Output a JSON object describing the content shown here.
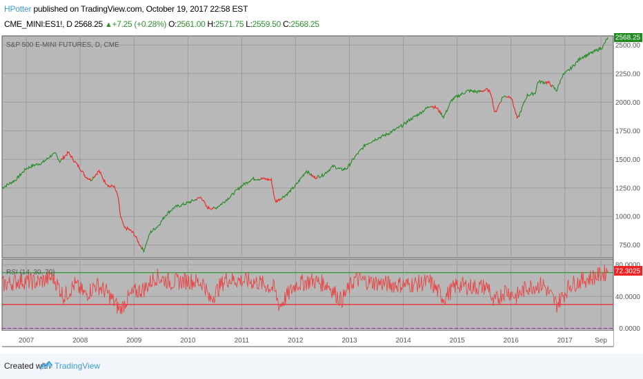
{
  "header": {
    "author": "HPotter",
    "published_text": "published on TradingView.com, October 19, 2017 22:58 EST",
    "symbol": "CME_MINI:ES1!, D",
    "last_price": "2568.25",
    "change": "+7.25 (+0.28%)",
    "open_label": "O:",
    "open": "2561.00",
    "high_label": "H:",
    "high": "2571.75",
    "low_label": "L:",
    "low": "2559.50",
    "close_label": "C:",
    "close": "2568.25"
  },
  "footer": {
    "created_with": "Created with",
    "brand": "TradingView"
  },
  "colors": {
    "pane_bg": "#b8b8b8",
    "up": "#1f8a1f",
    "down": "#ee2222",
    "rsi_line": "#e84444",
    "overbought_line": "#2f9a2f",
    "oversold_line": "#ee2222",
    "zero_line": "#9a30b0",
    "price_badge": "#1f8a1f",
    "rsi_badge": "#ee2222"
  },
  "chart_data": [
    {
      "type": "line",
      "title": "S&P 500 E-MINI FUTURES, D, CME",
      "y_ticks": [
        750,
        1000,
        1250,
        1500,
        1750,
        2000,
        2250,
        2500
      ],
      "ylim": [
        640,
        2580
      ],
      "last_value_label": "2568.25",
      "x_ticks": [
        "2007",
        "2008",
        "2009",
        "2010",
        "2011",
        "2012",
        "2013",
        "2014",
        "2015",
        "2016",
        "2017",
        "Sep"
      ],
      "x_tick_dates": [
        2007.0,
        2008.0,
        2009.0,
        2010.0,
        2011.0,
        2012.0,
        2013.0,
        2014.0,
        2015.0,
        2016.0,
        2017.0,
        2017.67
      ],
      "xlim": [
        2006.55,
        2017.9
      ],
      "series": [
        {
          "x": [
            2006.55,
            2006.8,
            2007.0,
            2007.15,
            2007.3,
            2007.45,
            2007.55,
            2007.62,
            2007.78,
            2007.9,
            2008.0,
            2008.1,
            2008.2,
            2008.35,
            2008.45,
            2008.55,
            2008.62,
            2008.7,
            2008.75,
            2008.82,
            2008.9,
            2009.0,
            2009.1,
            2009.18,
            2009.3,
            2009.45,
            2009.6,
            2009.75,
            2010.0,
            2010.25,
            2010.35,
            2010.5,
            2010.65,
            2010.8,
            2011.0,
            2011.2,
            2011.4,
            2011.55,
            2011.62,
            2011.7,
            2011.85,
            2012.0,
            2012.2,
            2012.35,
            2012.5,
            2012.7,
            2012.85,
            2012.95,
            2013.1,
            2013.3,
            2013.5,
            2013.7,
            2014.0,
            2014.1,
            2014.3,
            2014.5,
            2014.62,
            2014.75,
            2014.9,
            2015.0,
            2015.2,
            2015.4,
            2015.55,
            2015.63,
            2015.7,
            2015.85,
            2016.0,
            2016.12,
            2016.3,
            2016.45,
            2016.5,
            2016.7,
            2016.85,
            2016.95,
            2017.1,
            2017.3,
            2017.5,
            2017.7,
            2017.8
          ],
          "y": [
            1250,
            1320,
            1420,
            1450,
            1470,
            1530,
            1550,
            1480,
            1560,
            1480,
            1420,
            1350,
            1320,
            1400,
            1310,
            1260,
            1270,
            1180,
            1000,
            900,
            890,
            850,
            760,
            700,
            860,
            920,
            1020,
            1080,
            1120,
            1170,
            1080,
            1070,
            1120,
            1180,
            1270,
            1330,
            1330,
            1320,
            1130,
            1150,
            1200,
            1270,
            1400,
            1340,
            1360,
            1440,
            1410,
            1420,
            1520,
            1630,
            1680,
            1720,
            1800,
            1840,
            1900,
            1970,
            1950,
            1870,
            2020,
            2050,
            2100,
            2090,
            2110,
            2080,
            1900,
            2050,
            2050,
            1850,
            2060,
            2080,
            2180,
            2170,
            2100,
            2230,
            2290,
            2390,
            2430,
            2480,
            2568
          ]
        }
      ]
    },
    {
      "type": "line",
      "title": "RSI (14, 30, 70)",
      "y_ticks": [
        0,
        40,
        80
      ],
      "y_tick_labels": [
        "0.0000",
        "40.0000",
        "80.0000"
      ],
      "ylim": [
        -3,
        87
      ],
      "overbought": 70,
      "oversold": 30,
      "last_value_label": "72.3025",
      "series": [
        {
          "x": [
            2006.55,
            2006.9,
            2007.2,
            2007.5,
            2007.7,
            2007.9,
            2008.1,
            2008.3,
            2008.5,
            2008.75,
            2008.85,
            2009.0,
            2009.2,
            2009.4,
            2009.7,
            2010.0,
            2010.3,
            2010.4,
            2010.7,
            2011.0,
            2011.3,
            2011.6,
            2011.7,
            2012.0,
            2012.3,
            2012.6,
            2012.85,
            2013.1,
            2013.4,
            2013.8,
            2014.1,
            2014.5,
            2014.75,
            2015.0,
            2015.3,
            2015.6,
            2015.65,
            2015.9,
            2016.1,
            2016.3,
            2016.6,
            2016.85,
            2017.1,
            2017.4,
            2017.7,
            2017.8
          ],
          "y": [
            55,
            60,
            58,
            64,
            40,
            55,
            42,
            55,
            45,
            22,
            35,
            45,
            50,
            65,
            58,
            60,
            57,
            35,
            62,
            60,
            58,
            50,
            28,
            55,
            60,
            55,
            35,
            62,
            58,
            55,
            55,
            58,
            38,
            55,
            52,
            52,
            30,
            48,
            40,
            52,
            55,
            30,
            55,
            62,
            68,
            72.3
          ]
        }
      ]
    }
  ]
}
